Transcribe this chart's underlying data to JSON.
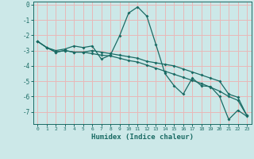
{
  "xlabel": "Humidex (Indice chaleur)",
  "bg_color": "#cce8e8",
  "grid_color": "#e8b8b8",
  "line_color": "#1a6b64",
  "xlim": [
    -0.5,
    23.5
  ],
  "ylim": [
    -7.8,
    0.2
  ],
  "xticks": [
    0,
    1,
    2,
    3,
    4,
    5,
    6,
    7,
    8,
    9,
    10,
    11,
    12,
    13,
    14,
    15,
    16,
    17,
    18,
    19,
    20,
    21,
    22,
    23
  ],
  "yticks": [
    0,
    -1,
    -2,
    -3,
    -4,
    -5,
    -6,
    -7
  ],
  "series1_x": [
    0,
    1,
    2,
    3,
    4,
    5,
    6,
    7,
    8,
    9,
    10,
    11,
    12,
    13,
    14,
    15,
    16,
    17,
    18,
    19,
    20,
    21,
    22,
    23
  ],
  "series1_y": [
    -2.4,
    -2.8,
    -3.0,
    -2.9,
    -2.7,
    -2.8,
    -2.7,
    -3.55,
    -3.3,
    -2.05,
    -0.55,
    -0.15,
    -0.75,
    -2.6,
    -4.5,
    -5.3,
    -5.85,
    -4.8,
    -5.3,
    -5.35,
    -6.0,
    -7.5,
    -6.9,
    -7.3
  ],
  "series2_x": [
    0,
    1,
    2,
    3,
    4,
    5,
    6,
    7,
    8,
    9,
    10,
    11,
    12,
    13,
    14,
    15,
    16,
    17,
    18,
    19,
    20,
    21,
    22,
    23
  ],
  "series2_y": [
    -2.4,
    -2.8,
    -3.1,
    -3.0,
    -3.1,
    -3.1,
    -3.0,
    -3.1,
    -3.2,
    -3.3,
    -3.4,
    -3.5,
    -3.7,
    -3.8,
    -3.9,
    -4.0,
    -4.2,
    -4.4,
    -4.6,
    -4.8,
    -5.0,
    -5.85,
    -6.05,
    -7.25
  ],
  "series3_x": [
    0,
    1,
    2,
    3,
    4,
    5,
    6,
    7,
    8,
    9,
    10,
    11,
    12,
    13,
    14,
    15,
    16,
    17,
    18,
    19,
    20,
    21,
    22,
    23
  ],
  "series3_y": [
    -2.4,
    -2.8,
    -3.1,
    -3.0,
    -3.1,
    -3.1,
    -3.2,
    -3.3,
    -3.35,
    -3.5,
    -3.65,
    -3.75,
    -3.95,
    -4.15,
    -4.35,
    -4.55,
    -4.75,
    -4.95,
    -5.15,
    -5.4,
    -5.65,
    -6.0,
    -6.25,
    -7.25
  ]
}
